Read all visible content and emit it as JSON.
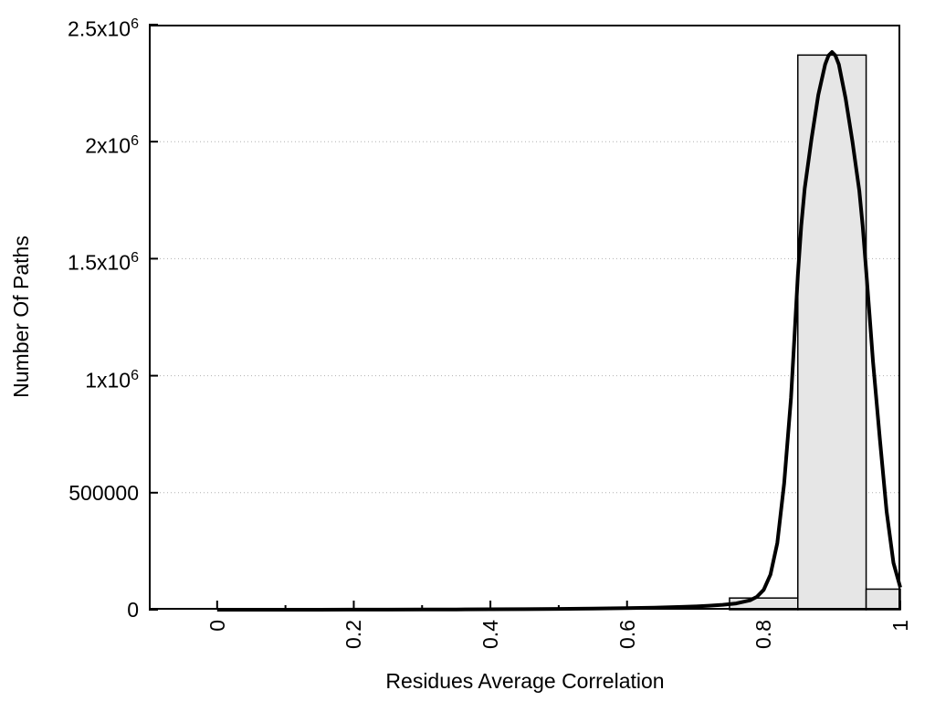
{
  "chart_data": {
    "type": "bar",
    "subtype": "histogram-with-fit-curve",
    "title": "",
    "xlabel": "Residues Average Correlation",
    "ylabel": "Number Of Paths",
    "xlim": [
      -0.1,
      1.0
    ],
    "ylim": [
      0,
      2500000
    ],
    "grid": {
      "horizontal": true,
      "vertical": false,
      "style": "dotted"
    },
    "legend": null,
    "x_ticks": [
      {
        "v": 0,
        "label": "0"
      },
      {
        "v": 0.2,
        "label": "0.2"
      },
      {
        "v": 0.4,
        "label": "0.4"
      },
      {
        "v": 0.6,
        "label": "0.6"
      },
      {
        "v": 0.8,
        "label": "0.8"
      },
      {
        "v": 1,
        "label": "1"
      }
    ],
    "x_minor_ticks": [
      0.1,
      0.3,
      0.5,
      0.7,
      0.9
    ],
    "y_ticks": [
      {
        "v": 0,
        "base": "0",
        "exp": ""
      },
      {
        "v": 500000,
        "base": "500000",
        "exp": ""
      },
      {
        "v": 1000000,
        "base": "1x10",
        "exp": "6"
      },
      {
        "v": 1500000,
        "base": "1.5x10",
        "exp": "6"
      },
      {
        "v": 2000000,
        "base": "2x10",
        "exp": "6"
      },
      {
        "v": 2500000,
        "base": "2.5x10",
        "exp": "6"
      }
    ],
    "bars": [
      {
        "x0": 0.75,
        "x1": 0.85,
        "count": 50000
      },
      {
        "x0": 0.85,
        "x1": 0.95,
        "count": 2370000
      },
      {
        "x0": 0.95,
        "x1": 1.0,
        "count": 88000
      }
    ],
    "curve": {
      "name": "fit-curve",
      "x": [
        0,
        0.05,
        0.1,
        0.15,
        0.2,
        0.25,
        0.3,
        0.35,
        0.4,
        0.45,
        0.5,
        0.55,
        0.6,
        0.64,
        0.68,
        0.7,
        0.72,
        0.74,
        0.76,
        0.78,
        0.79,
        0.8,
        0.81,
        0.82,
        0.83,
        0.84,
        0.845,
        0.85,
        0.855,
        0.86,
        0.87,
        0.88,
        0.89,
        0.895,
        0.9,
        0.905,
        0.91,
        0.92,
        0.93,
        0.94,
        0.945,
        0.95,
        0.955,
        0.96,
        0.97,
        0.98,
        0.99,
        1.0
      ],
      "y": [
        0,
        0,
        0,
        0,
        300,
        500,
        800,
        1200,
        1800,
        2500,
        3500,
        5000,
        7000,
        9000,
        12000,
        14000,
        17000,
        21000,
        27000,
        40000,
        55000,
        85000,
        150000,
        285000,
        540000,
        905000,
        1160000,
        1430000,
        1640000,
        1800000,
        2010000,
        2200000,
        2330000,
        2368000,
        2383000,
        2368000,
        2330000,
        2185000,
        2000000,
        1790000,
        1640000,
        1450000,
        1260000,
        1060000,
        730000,
        420000,
        200000,
        95000
      ]
    },
    "colors": {
      "bar_fill": "#e6e6e6",
      "bar_border": "#000000",
      "curve": "#000000",
      "grid": "#b0b0b0",
      "axis": "#000000",
      "background": "#ffffff"
    }
  }
}
